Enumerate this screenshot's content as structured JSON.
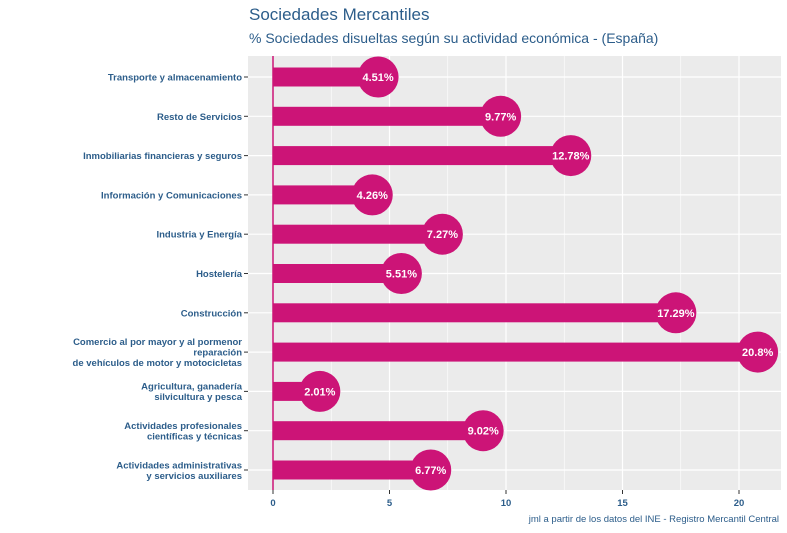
{
  "header": {
    "title": "Sociedades Mercantiles",
    "subtitle": "% Sociedades disueltas según su actividad económica - (España)"
  },
  "caption": "jml a partir de los datos del INE - Registro Mercantil Central",
  "colors": {
    "bar": "#cc1477",
    "panel": "#ebebeb",
    "grid": "#ffffff",
    "text": "#2c5d8a"
  },
  "chart_data": {
    "type": "bar",
    "orientation": "horizontal",
    "title": "Sociedades Mercantiles",
    "subtitle": "% Sociedades disueltas según su actividad económica - (España)",
    "xlabel": "",
    "ylabel": "",
    "xlim": [
      0,
      21.8
    ],
    "xticks": [
      0,
      5,
      10,
      15,
      20
    ],
    "categories": [
      [
        "Transporte y almacenamiento"
      ],
      [
        "Resto de Servicios"
      ],
      [
        "Inmobiliarias financieras y seguros"
      ],
      [
        "Información y Comunicaciones"
      ],
      [
        "Industria y Energía"
      ],
      [
        "Hostelería"
      ],
      [
        "Construcción"
      ],
      [
        "Comercio al por mayor y al pormenor",
        "reparación",
        "de vehículos de motor y motocicletas"
      ],
      [
        "Agricultura, ganadería",
        "silvicultura y pesca"
      ],
      [
        "Actividades profesionales",
        "científicas y técnicas"
      ],
      [
        "Actividades administrativas",
        "y servicios auxiliares"
      ]
    ],
    "values": [
      4.51,
      9.77,
      12.78,
      4.26,
      7.27,
      5.51,
      17.29,
      20.8,
      2.01,
      9.02,
      6.77
    ],
    "labels": [
      "4.51%",
      "9.77%",
      "12.78%",
      "4.26%",
      "7.27%",
      "5.51%",
      "17.29%",
      "20.8%",
      "2.01%",
      "9.02%",
      "6.77%"
    ],
    "grid": true
  }
}
